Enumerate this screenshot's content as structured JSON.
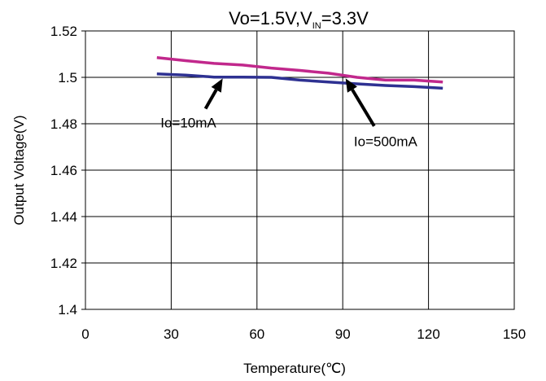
{
  "chart_data": {
    "type": "line",
    "title": {
      "main": "Vo=1.5V,V",
      "sub": "IN",
      "tail": "=3.3V"
    },
    "xlabel": "Temperature(℃)",
    "ylabel": "Output Voltage(V)",
    "xlim": [
      0,
      150
    ],
    "ylim": [
      1.4,
      1.52
    ],
    "xticks": [
      0,
      30,
      60,
      90,
      120,
      150
    ],
    "yticks": [
      1.4,
      1.42,
      1.44,
      1.46,
      1.48,
      1.5,
      1.52
    ],
    "ytick_labels": [
      "1.4",
      "1.42",
      "1.44",
      "1.46",
      "1.48",
      "1.5",
      "1.52"
    ],
    "grid": true,
    "series": [
      {
        "name": "Io=10mA",
        "color": "#2e3192",
        "x": [
          25,
          35,
          45,
          55,
          65,
          75,
          85,
          95,
          105,
          115,
          125
        ],
        "y": [
          1.5015,
          1.501,
          1.5001,
          1.5001,
          1.5,
          1.4988,
          1.498,
          1.4972,
          1.4965,
          1.496,
          1.4953
        ]
      },
      {
        "name": "Io=500mA",
        "color": "#c1288c",
        "x": [
          25,
          35,
          45,
          55,
          65,
          75,
          85,
          95,
          105,
          115,
          125
        ],
        "y": [
          1.5085,
          1.5072,
          1.506,
          1.5053,
          1.504,
          1.503,
          1.5018,
          1.5,
          1.4988,
          1.4988,
          1.498
        ]
      }
    ],
    "annotations": [
      {
        "text": "Io=10mA",
        "text_x": 36,
        "text_y": 1.4805,
        "arrow_from": [
          42,
          1.4865
        ],
        "arrow_to": [
          48,
          1.4995
        ]
      },
      {
        "text": "Io=500mA",
        "text_x": 105,
        "text_y": 1.4725,
        "arrow_from": [
          101,
          1.479
        ],
        "arrow_to": [
          91,
          1.4995
        ]
      }
    ]
  }
}
